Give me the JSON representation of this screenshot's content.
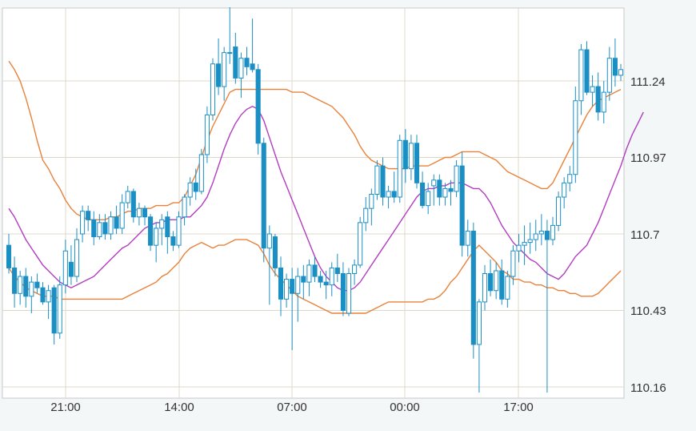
{
  "chart_data": {
    "type": "candlestick",
    "title": "",
    "xlabel": "",
    "ylabel": "",
    "ylim": [
      110.15,
      111.45
    ],
    "grid": true,
    "legend": "none",
    "y_ticks": [
      "111.24",
      "110.97",
      "110.7",
      "110.43",
      "110.16"
    ],
    "x_ticks": [
      "21:00",
      "14:00",
      "07:00",
      "00:00",
      "17:00"
    ],
    "colors": {
      "up": "#ffffff",
      "down": "#1b8fc4",
      "bollinger": "#e8823a",
      "ma": "#b23cc1",
      "grid": "#dcd8c8"
    },
    "candles": [
      [
        110.66,
        110.7,
        110.56,
        110.58
      ],
      [
        110.58,
        110.62,
        110.44,
        110.49
      ],
      [
        110.49,
        110.57,
        110.45,
        110.55
      ],
      [
        110.55,
        110.58,
        110.44,
        110.48
      ],
      [
        110.48,
        110.55,
        110.42,
        110.53
      ],
      [
        110.53,
        110.56,
        110.49,
        110.51
      ],
      [
        110.51,
        110.53,
        110.45,
        110.46
      ],
      [
        110.46,
        110.52,
        110.4,
        110.5
      ],
      [
        110.51,
        110.52,
        110.31,
        110.35
      ],
      [
        110.35,
        110.55,
        110.33,
        110.52
      ],
      [
        110.52,
        110.68,
        110.49,
        110.64
      ],
      [
        110.6,
        110.66,
        110.52,
        110.55
      ],
      [
        110.55,
        110.72,
        110.53,
        110.68
      ],
      [
        110.7,
        110.8,
        110.67,
        110.78
      ],
      [
        110.78,
        110.8,
        110.71,
        110.75
      ],
      [
        110.75,
        110.78,
        110.66,
        110.69
      ],
      [
        110.69,
        110.77,
        110.68,
        110.74
      ],
      [
        110.74,
        110.77,
        110.68,
        110.7
      ],
      [
        110.7,
        110.78,
        110.68,
        110.76
      ],
      [
        110.76,
        110.8,
        110.7,
        110.72
      ],
      [
        110.72,
        110.84,
        110.7,
        110.81
      ],
      [
        110.81,
        110.87,
        110.79,
        110.85
      ],
      [
        110.85,
        110.86,
        110.74,
        110.76
      ],
      [
        110.76,
        110.81,
        110.73,
        110.79
      ],
      [
        110.79,
        110.8,
        110.73,
        110.76
      ],
      [
        110.76,
        110.77,
        110.64,
        110.66
      ],
      [
        110.66,
        110.74,
        110.6,
        110.72
      ],
      [
        110.72,
        110.77,
        110.66,
        110.75
      ],
      [
        110.76,
        110.78,
        110.63,
        110.69
      ],
      [
        110.69,
        110.71,
        110.64,
        110.66
      ],
      [
        110.66,
        110.78,
        110.65,
        110.76
      ],
      [
        110.76,
        110.84,
        110.73,
        110.83
      ],
      [
        110.83,
        110.9,
        110.8,
        110.88
      ],
      [
        110.88,
        110.93,
        110.82,
        110.85
      ],
      [
        110.85,
        111.0,
        110.84,
        110.98
      ],
      [
        110.98,
        111.15,
        110.95,
        111.12
      ],
      [
        111.12,
        111.32,
        111.1,
        111.3
      ],
      [
        111.3,
        111.39,
        111.19,
        111.22
      ],
      [
        111.22,
        111.36,
        111.17,
        111.34
      ],
      [
        111.34,
        111.5,
        111.3,
        111.34
      ],
      [
        111.36,
        111.41,
        111.23,
        111.25
      ],
      [
        111.25,
        111.34,
        111.18,
        111.32
      ],
      [
        111.32,
        111.36,
        111.26,
        111.29
      ],
      [
        111.3,
        111.46,
        111.27,
        111.28
      ],
      [
        111.28,
        111.3,
        110.98,
        111.02
      ],
      [
        111.02,
        111.04,
        110.6,
        110.65
      ],
      [
        110.65,
        110.73,
        110.45,
        110.7
      ],
      [
        110.69,
        110.7,
        110.55,
        110.58
      ],
      [
        110.58,
        110.62,
        110.41,
        110.47
      ],
      [
        110.47,
        110.56,
        110.44,
        110.54
      ],
      [
        110.54,
        110.58,
        110.29,
        110.49
      ],
      [
        110.49,
        110.58,
        110.39,
        110.55
      ],
      [
        110.55,
        110.59,
        110.47,
        110.53
      ],
      [
        110.53,
        110.61,
        110.48,
        110.59
      ],
      [
        110.59,
        110.62,
        110.53,
        110.55
      ],
      [
        110.55,
        110.57,
        110.51,
        110.53
      ],
      [
        110.53,
        110.57,
        110.47,
        110.52
      ],
      [
        110.52,
        110.6,
        110.48,
        110.58
      ],
      [
        110.58,
        110.63,
        110.53,
        110.56
      ],
      [
        110.56,
        110.6,
        110.41,
        110.43
      ],
      [
        110.42,
        110.58,
        110.41,
        110.56
      ],
      [
        110.56,
        110.61,
        110.52,
        110.59
      ],
      [
        110.59,
        110.76,
        110.58,
        110.74
      ],
      [
        110.74,
        110.83,
        110.71,
        110.79
      ],
      [
        110.79,
        110.86,
        110.73,
        110.84
      ],
      [
        110.84,
        110.96,
        110.82,
        110.94
      ],
      [
        110.94,
        110.97,
        110.8,
        110.83
      ],
      [
        110.83,
        110.87,
        110.79,
        110.85
      ],
      [
        110.85,
        110.92,
        110.81,
        110.83
      ],
      [
        110.83,
        111.05,
        110.81,
        111.03
      ],
      [
        111.03,
        111.07,
        110.88,
        110.93
      ],
      [
        110.93,
        111.05,
        110.89,
        111.02
      ],
      [
        111.02,
        111.05,
        110.86,
        110.88
      ],
      [
        110.88,
        110.92,
        110.79,
        110.8
      ],
      [
        110.8,
        110.88,
        110.77,
        110.85
      ],
      [
        110.87,
        110.91,
        110.8,
        110.89
      ],
      [
        110.89,
        110.91,
        110.8,
        110.83
      ],
      [
        110.83,
        110.88,
        110.8,
        110.86
      ],
      [
        110.86,
        110.89,
        110.8,
        110.85
      ],
      [
        110.85,
        110.96,
        110.83,
        110.94
      ],
      [
        110.94,
        110.99,
        110.62,
        110.66
      ],
      [
        110.66,
        110.75,
        110.62,
        110.71
      ],
      [
        110.71,
        110.74,
        110.26,
        110.31
      ],
      [
        110.31,
        110.47,
        110.14,
        110.46
      ],
      [
        110.46,
        110.59,
        110.43,
        110.56
      ],
      [
        110.56,
        110.61,
        110.48,
        110.5
      ],
      [
        110.5,
        110.6,
        110.47,
        110.57
      ],
      [
        110.57,
        110.61,
        110.45,
        110.47
      ],
      [
        110.47,
        110.57,
        110.44,
        110.55
      ],
      [
        110.55,
        110.66,
        110.52,
        110.64
      ],
      [
        110.64,
        110.7,
        110.6,
        110.66
      ],
      [
        110.66,
        110.73,
        110.59,
        110.67
      ],
      [
        110.67,
        110.74,
        110.63,
        110.68
      ],
      [
        110.68,
        110.75,
        110.64,
        110.7
      ],
      [
        110.7,
        110.77,
        110.66,
        110.71
      ],
      [
        110.71,
        110.75,
        110.14,
        110.68
      ],
      [
        110.68,
        110.76,
        110.66,
        110.73
      ],
      [
        110.73,
        110.85,
        110.71,
        110.83
      ],
      [
        110.83,
        110.9,
        110.79,
        110.88
      ],
      [
        110.88,
        110.94,
        110.85,
        110.91
      ],
      [
        110.91,
        111.22,
        110.88,
        111.17
      ],
      [
        111.17,
        111.37,
        111.12,
        111.35
      ],
      [
        111.35,
        111.38,
        111.19,
        111.2
      ],
      [
        111.2,
        111.26,
        111.15,
        111.22
      ],
      [
        111.22,
        111.27,
        111.1,
        111.13
      ],
      [
        111.13,
        111.24,
        111.09,
        111.2
      ],
      [
        111.2,
        111.36,
        111.17,
        111.32
      ],
      [
        111.32,
        111.39,
        111.22,
        111.26
      ],
      [
        111.26,
        111.3,
        111.24,
        111.28
      ]
    ],
    "series": [
      {
        "name": "",
        "role": "bollinger-upper",
        "values": [
          111.31,
          111.28,
          111.24,
          111.18,
          111.11,
          111.03,
          110.96,
          110.93,
          110.89,
          110.86,
          110.82,
          110.79,
          110.77,
          110.76,
          110.75,
          110.75,
          110.75,
          110.75,
          110.76,
          110.76,
          110.77,
          110.78,
          110.78,
          110.79,
          110.79,
          110.79,
          110.8,
          110.8,
          110.8,
          110.81,
          110.81,
          110.83,
          110.87,
          110.91,
          110.97,
          111.03,
          111.08,
          111.12,
          111.16,
          111.2,
          111.21,
          111.21,
          111.21,
          111.21,
          111.21,
          111.21,
          111.21,
          111.21,
          111.21,
          111.21,
          111.2,
          111.2,
          111.2,
          111.19,
          111.18,
          111.17,
          111.16,
          111.15,
          111.13,
          111.11,
          111.08,
          111.05,
          111.01,
          110.98,
          110.96,
          110.95,
          110.94,
          110.93,
          110.93,
          110.93,
          110.93,
          110.94,
          110.94,
          110.94,
          110.94,
          110.95,
          110.96,
          110.97,
          110.97,
          110.98,
          110.99,
          110.99,
          110.99,
          110.99,
          110.98,
          110.97,
          110.96,
          110.94,
          110.92,
          110.91,
          110.9,
          110.89,
          110.88,
          110.87,
          110.86,
          110.86,
          110.88,
          110.92,
          110.96,
          111.0,
          111.04,
          111.08,
          111.12,
          111.15,
          111.17,
          111.18,
          111.19,
          111.2,
          111.21
        ]
      },
      {
        "name": "",
        "role": "bollinger-lower",
        "values": [
          110.58,
          110.55,
          110.53,
          110.51,
          110.5,
          110.49,
          110.48,
          110.48,
          110.48,
          110.47,
          110.47,
          110.47,
          110.47,
          110.47,
          110.47,
          110.47,
          110.47,
          110.47,
          110.47,
          110.47,
          110.47,
          110.48,
          110.49,
          110.5,
          110.51,
          110.52,
          110.53,
          110.55,
          110.56,
          110.58,
          110.6,
          110.63,
          110.65,
          110.66,
          110.67,
          110.66,
          110.65,
          110.66,
          110.66,
          110.67,
          110.68,
          110.68,
          110.68,
          110.67,
          110.66,
          110.63,
          110.59,
          110.56,
          110.54,
          110.52,
          110.5,
          110.48,
          110.47,
          110.46,
          110.45,
          110.44,
          110.43,
          110.42,
          110.42,
          110.42,
          110.42,
          110.42,
          110.42,
          110.42,
          110.43,
          110.44,
          110.45,
          110.46,
          110.46,
          110.46,
          110.46,
          110.46,
          110.46,
          110.46,
          110.47,
          110.47,
          110.48,
          110.5,
          110.53,
          110.55,
          110.58,
          110.61,
          110.64,
          110.66,
          110.64,
          110.62,
          110.6,
          110.57,
          110.56,
          110.54,
          110.54,
          110.53,
          110.53,
          110.52,
          110.52,
          110.51,
          110.51,
          110.5,
          110.5,
          110.49,
          110.49,
          110.48,
          110.48,
          110.48,
          110.49,
          110.51,
          110.53,
          110.55,
          110.57
        ]
      },
      {
        "name": "",
        "role": "moving-average",
        "values": [
          110.79,
          110.76,
          110.72,
          110.68,
          110.65,
          110.62,
          110.59,
          110.57,
          110.55,
          110.53,
          110.52,
          110.51,
          110.52,
          110.53,
          110.54,
          110.55,
          110.57,
          110.59,
          110.61,
          110.63,
          110.65,
          110.66,
          110.68,
          110.7,
          110.72,
          110.73,
          110.74,
          110.74,
          110.75,
          110.75,
          110.75,
          110.76,
          110.76,
          110.78,
          110.8,
          110.83,
          110.88,
          110.94,
          111.0,
          111.05,
          111.09,
          111.12,
          111.14,
          111.15,
          111.14,
          111.1,
          111.04,
          110.98,
          110.92,
          110.87,
          110.82,
          110.77,
          110.72,
          110.67,
          110.62,
          110.58,
          110.55,
          110.53,
          110.51,
          110.5,
          110.5,
          110.51,
          110.53,
          110.56,
          110.59,
          110.62,
          110.65,
          110.68,
          110.71,
          110.74,
          110.77,
          110.8,
          110.83,
          110.85,
          110.86,
          110.86,
          110.87,
          110.87,
          110.88,
          110.88,
          110.88,
          110.87,
          110.86,
          110.86,
          110.84,
          110.81,
          110.77,
          110.73,
          110.7,
          110.67,
          110.65,
          110.63,
          110.61,
          110.6,
          110.58,
          110.56,
          110.55,
          110.54,
          110.56,
          110.59,
          110.62,
          110.64,
          110.66,
          110.7,
          110.74,
          110.79,
          110.84,
          110.89,
          110.94,
          111.0,
          111.05,
          111.09,
          111.13
        ]
      }
    ]
  }
}
